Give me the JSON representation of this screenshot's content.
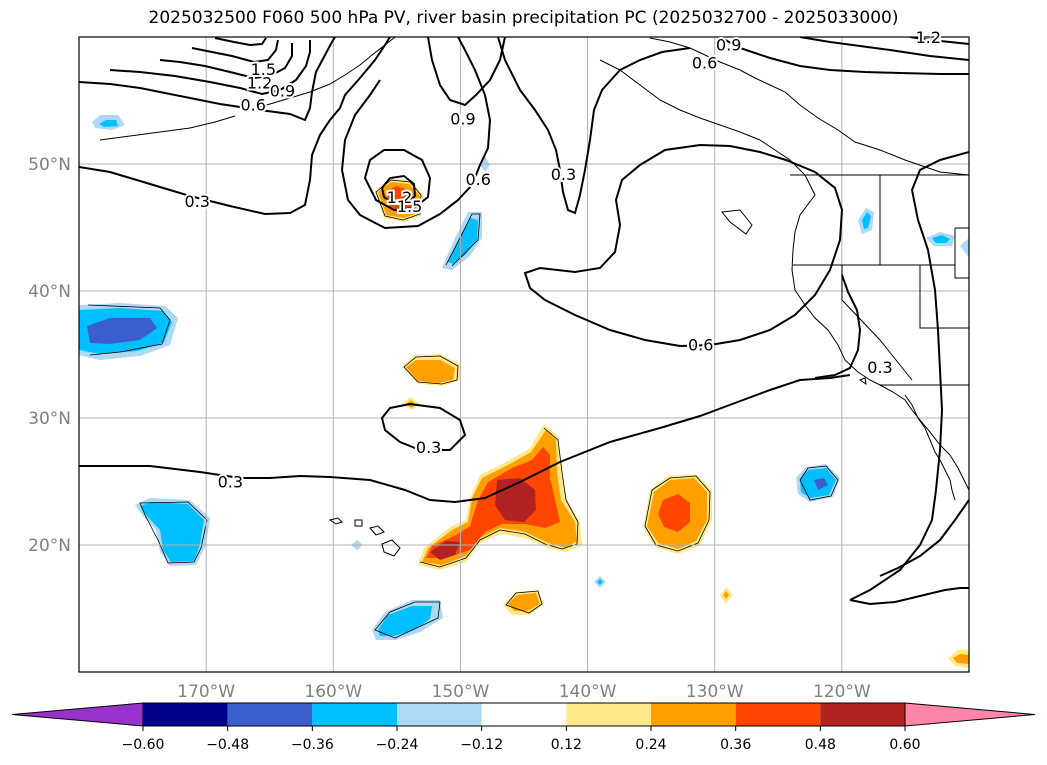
{
  "chart_data": {
    "type": "contour map",
    "title": "2025032500 F060 500 hPa PV, river basin precipitation PC (2025032700 - 2025033000)",
    "map": {
      "lon_range": [
        -180,
        -110
      ],
      "lat_range": [
        10,
        60
      ],
      "lon_ticks": [
        {
          "value": -170,
          "label": "170°W"
        },
        {
          "value": -160,
          "label": "160°W"
        },
        {
          "value": -150,
          "label": "150°W"
        },
        {
          "value": -140,
          "label": "140°W"
        },
        {
          "value": -130,
          "label": "130°W"
        },
        {
          "value": -120,
          "label": "120°W"
        }
      ],
      "lat_ticks": [
        {
          "value": 20,
          "label": "20°N"
        },
        {
          "value": 30,
          "label": "30°N"
        },
        {
          "value": 40,
          "label": "40°N"
        },
        {
          "value": 50,
          "label": "50°N"
        }
      ],
      "grid": true,
      "tick_color": "#808080"
    },
    "pv_contours": {
      "color": "#000000",
      "labels": [
        {
          "text": "1.5",
          "lon": -165.5,
          "lat": 57.5
        },
        {
          "text": "1.2",
          "lon": -165.8,
          "lat": 56.4
        },
        {
          "text": "0.9",
          "lon": -164.0,
          "lat": 55.8
        },
        {
          "text": "0.6",
          "lon": -166.3,
          "lat": 54.7
        },
        {
          "text": "0.3",
          "lon": -170.7,
          "lat": 47.1
        },
        {
          "text": "0.9",
          "lon": -149.8,
          "lat": 53.6
        },
        {
          "text": "0.6",
          "lon": -148.6,
          "lat": 48.8
        },
        {
          "text": "0.3",
          "lon": -141.9,
          "lat": 49.2
        },
        {
          "text": "1.2",
          "lon": -154.8,
          "lat": 47.4
        },
        {
          "text": "1.5",
          "lon": -154.0,
          "lat": 46.7
        },
        {
          "text": "0.9",
          "lon": -128.9,
          "lat": 59.4
        },
        {
          "text": "0.6",
          "lon": -130.8,
          "lat": 58.0
        },
        {
          "text": "1.2",
          "lon": -113.2,
          "lat": 60.0
        },
        {
          "text": "0.6",
          "lon": -131.1,
          "lat": 35.8
        },
        {
          "text": "0.3",
          "lon": -152.5,
          "lat": 27.7
        },
        {
          "text": "0.3",
          "lon": -168.1,
          "lat": 25.0
        },
        {
          "text": "0.3",
          "lon": -117.0,
          "lat": 34.0
        }
      ]
    },
    "precip_pc": {
      "features": [
        {
          "kind": "positive",
          "max_level": 0.48,
          "lon": -145.5,
          "lat": 23.5,
          "desc": "main band"
        },
        {
          "kind": "positive",
          "max_level": 0.48,
          "lon": -151.5,
          "lat": 19.5,
          "desc": "south of Hawaii"
        },
        {
          "kind": "positive",
          "max_level": 0.36,
          "lon": -132.0,
          "lat": 22.5
        },
        {
          "kind": "positive",
          "max_level": 0.24,
          "lon": -151.5,
          "lat": 34.5
        },
        {
          "kind": "positive",
          "max_level": 0.36,
          "lon": -155.0,
          "lat": 47.0
        },
        {
          "kind": "positive",
          "max_level": 0.24,
          "lon": -145.5,
          "lat": 15.5
        },
        {
          "kind": "positive",
          "max_level": 0.12,
          "lon": -153.5,
          "lat": 31.0
        },
        {
          "kind": "positive",
          "max_level": 0.12,
          "lon": -129.0,
          "lat": 16.0
        },
        {
          "kind": "positive",
          "max_level": 0.24,
          "lon": -110.7,
          "lat": 11.0
        },
        {
          "kind": "negative",
          "max_level": -0.48,
          "lon": -176.5,
          "lat": 37.0,
          "desc": "near dateline"
        },
        {
          "kind": "negative",
          "max_level": -0.36,
          "lon": -167.0,
          "lat": 21.0
        },
        {
          "kind": "negative",
          "max_level": -0.36,
          "lon": -156.0,
          "lat": 13.5
        },
        {
          "kind": "negative",
          "max_level": -0.36,
          "lon": -151.0,
          "lat": 43.5
        },
        {
          "kind": "negative",
          "max_level": -0.48,
          "lon": -121.5,
          "lat": 25.0
        },
        {
          "kind": "negative",
          "max_level": -0.24,
          "lon": -178.0,
          "lat": 53.5
        },
        {
          "kind": "negative",
          "max_level": -0.36,
          "lon": -118.0,
          "lat": 41.5
        },
        {
          "kind": "negative",
          "max_level": -0.24,
          "lon": -112.0,
          "lat": 42.0
        },
        {
          "kind": "negative",
          "max_level": -0.24,
          "lon": -158.0,
          "lat": 20.0
        },
        {
          "kind": "negative",
          "max_level": -0.24,
          "lon": -139.0,
          "lat": 17.0
        },
        {
          "kind": "negative",
          "max_level": -0.24,
          "lon": -148.0,
          "lat": 49.8
        }
      ]
    },
    "colorbar": {
      "orientation": "horizontal",
      "extend": "both",
      "labels": [
        "−0.60",
        "−0.48",
        "−0.36",
        "−0.24",
        "−0.12",
        "0.12",
        "0.24",
        "0.36",
        "0.48",
        "0.60"
      ],
      "boundaries": [
        -0.6,
        -0.48,
        -0.36,
        -0.24,
        -0.12,
        0.12,
        0.24,
        0.36,
        0.48,
        0.6
      ],
      "colors": [
        "#9932cc",
        "#00008b",
        "#3a5fcd",
        "#00bfff",
        "#add8f6",
        "#ffffff",
        "#ffe88a",
        "#ffa000",
        "#ff4500",
        "#b22222",
        "#ff85a8"
      ]
    }
  }
}
